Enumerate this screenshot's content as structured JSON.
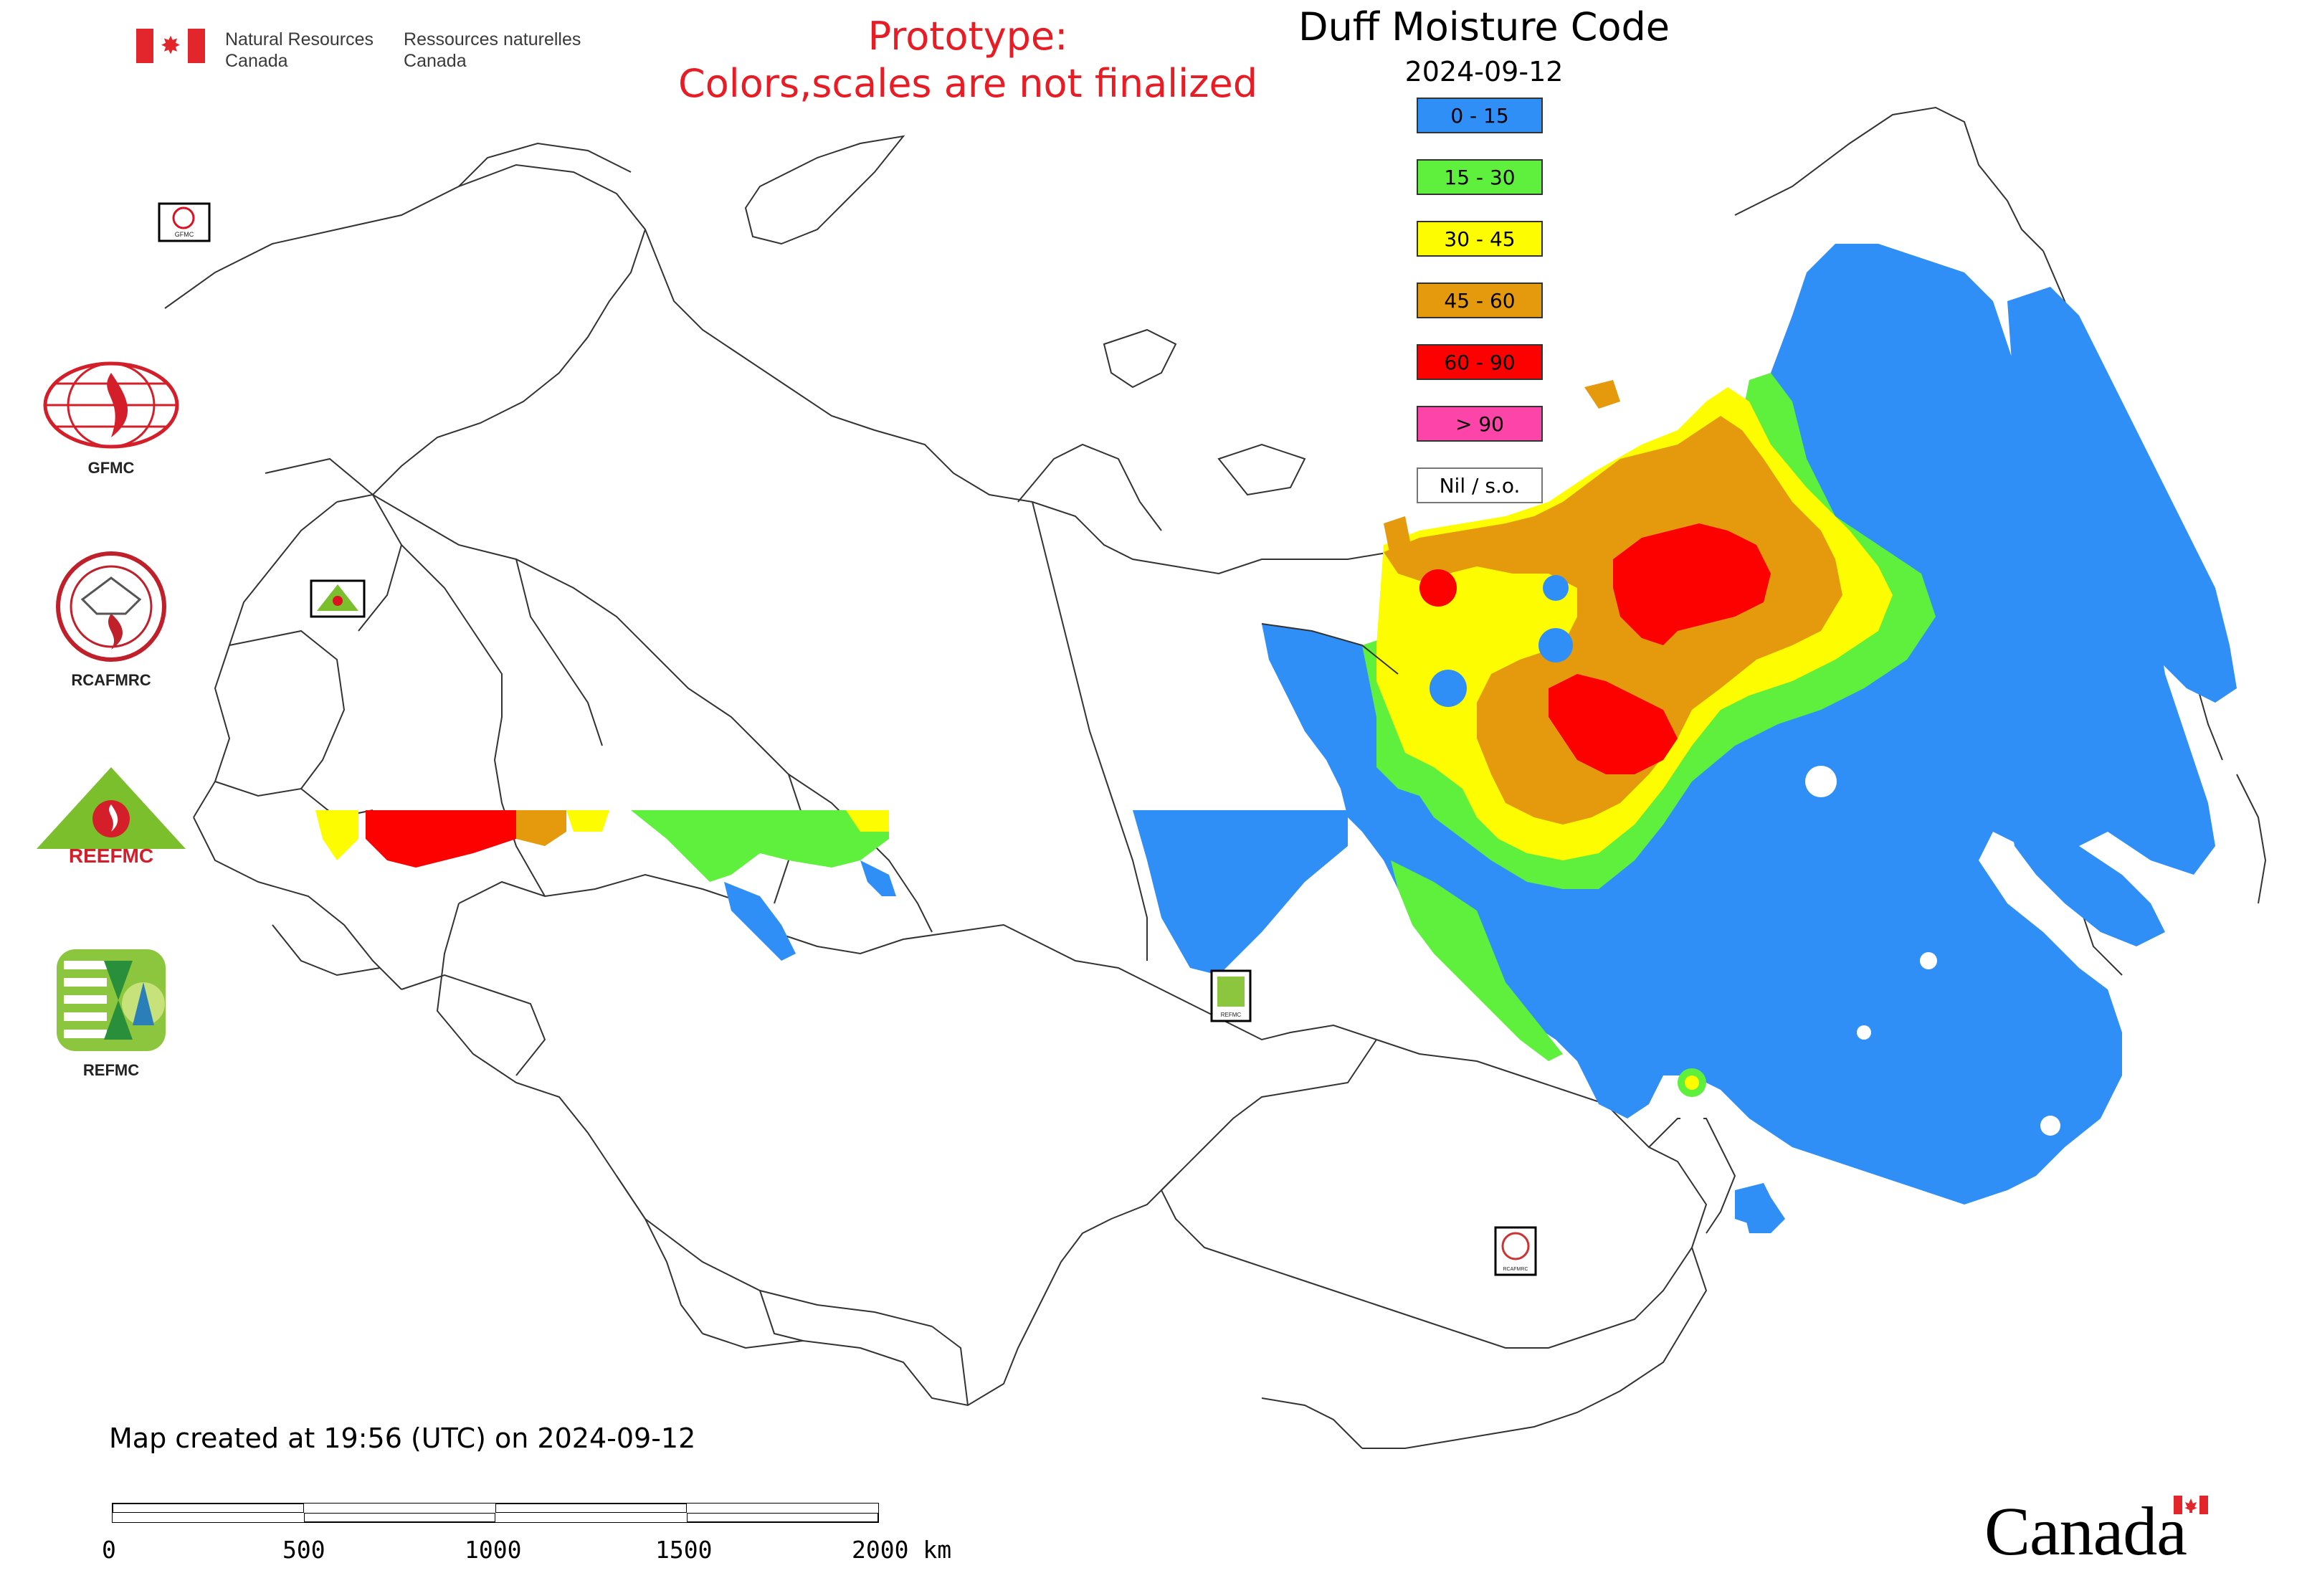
{
  "header": {
    "agency_en_line1": "Natural Resources",
    "agency_en_line2": "Canada",
    "agency_fr_line1": "Ressources naturelles",
    "agency_fr_line2": "Canada",
    "prototype_line1": "Prototype:",
    "prototype_line2": "Colors,scales are not finalized"
  },
  "map": {
    "title": "Duff Moisture Code",
    "date": "2024-09-12",
    "created_note": "Map created at 19:56 (UTC) on 2024-09-12"
  },
  "legend": {
    "items": [
      {
        "label": "0 - 15",
        "color": "#2f8ff6"
      },
      {
        "label": "15 - 30",
        "color": "#5ef03c"
      },
      {
        "label": "30 - 45",
        "color": "#fdfc00"
      },
      {
        "label": "45 - 60",
        "color": "#e59a0e"
      },
      {
        "label": "60 - 90",
        "color": "#fd0000"
      },
      {
        "label": "> 90",
        "color": "#fd44a8"
      },
      {
        "label": "Nil / s.o.",
        "color": "#ffffff"
      }
    ]
  },
  "logos": {
    "gfmc": "GFMC",
    "rcafmrc": "RCAFMRC",
    "reefmc": "REEFMC",
    "refmc": "REFMC",
    "rcafmrc_badge_text": "RCAFMRC",
    "reefmc_badge_text": "REEFMC"
  },
  "scale": {
    "labels": [
      "0",
      "500",
      "1000",
      "1500",
      "2000 km"
    ]
  },
  "footer": {
    "wordmark": "Canada"
  },
  "colors": {
    "prototype_text": "#e81c24",
    "flag_red": "#e3262b",
    "boundary": "#333333"
  }
}
